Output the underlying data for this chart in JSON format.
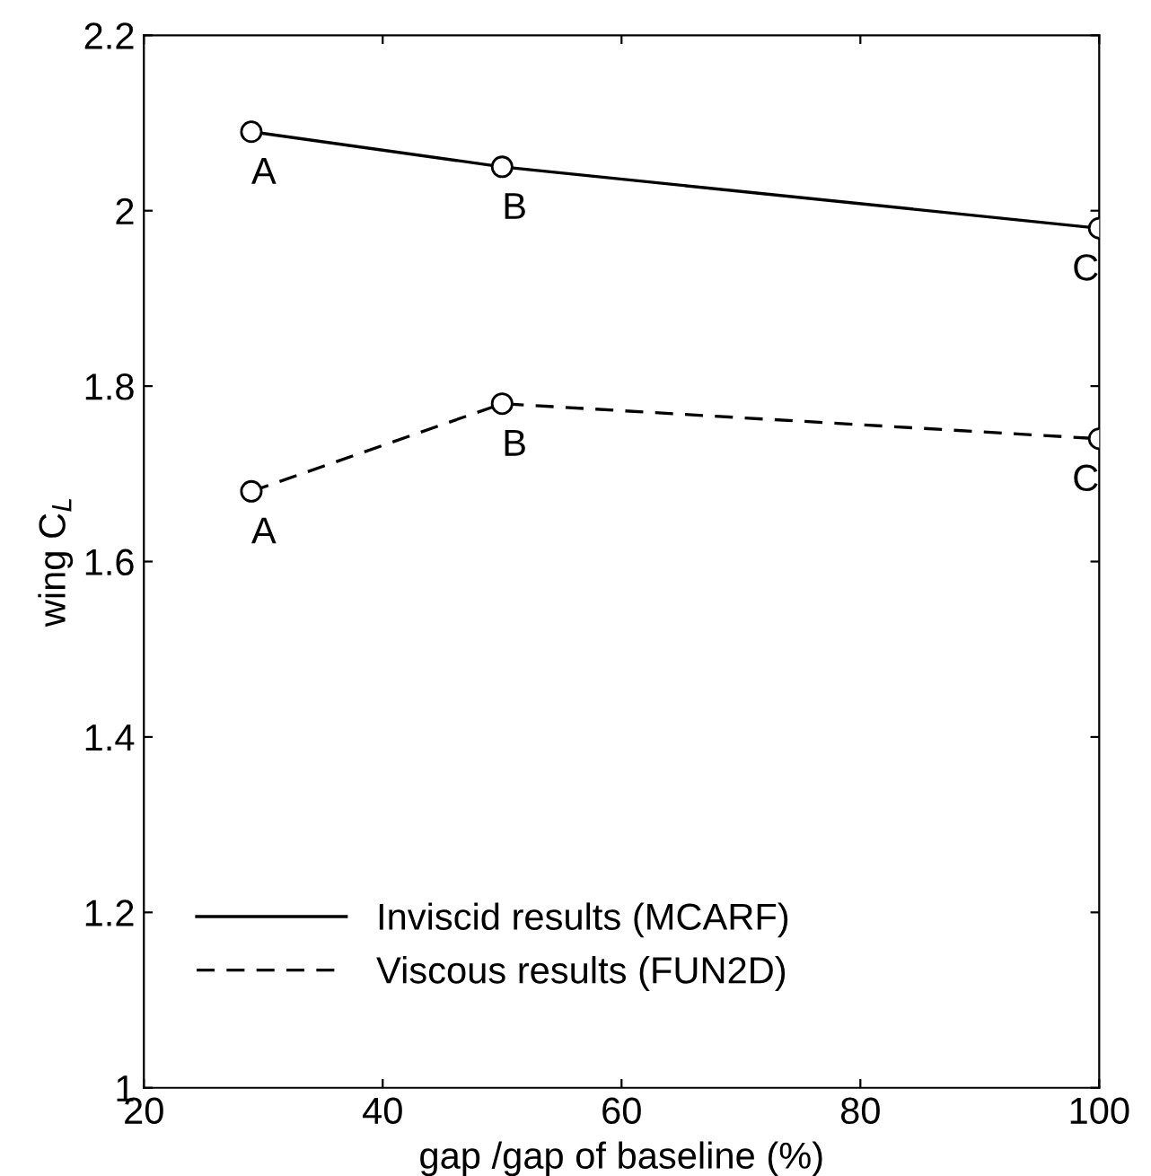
{
  "chart_data": {
    "type": "line",
    "xlabel": "gap /gap of baseline (%)",
    "ylabel": "wing C$_{L}$",
    "series": [
      {
        "name": "Inviscid results (MCARF)",
        "color": "#000000",
        "x": [
          29,
          50,
          100
        ],
        "values": [
          2.09,
          2.05,
          1.98
        ],
        "line_style": "solid"
      },
      {
        "name": "Viscous results (FUN2D)",
        "color": "#000000",
        "x": [
          29,
          50,
          100
        ],
        "values": [
          1.68,
          1.78,
          1.74
        ],
        "line_style": "dashed"
      }
    ],
    "marker": "circle",
    "legend": "bottom left",
    "grid": false,
    "xlim": [
      20,
      100
    ],
    "xticks": [
      20,
      40,
      60,
      80,
      100
    ],
    "ylim": [
      1,
      2.2
    ],
    "yticks": [
      1,
      1.2,
      1.4,
      1.6,
      1.8,
      2,
      2.2
    ],
    "annotations": [
      {
        "text": "A",
        "x": 29,
        "y": 2.09
      },
      {
        "text": "B",
        "x": 50,
        "y": 2.05
      },
      {
        "text": "C",
        "x": 100,
        "y": 1.98
      },
      {
        "text": "A",
        "x": 29,
        "y": 1.68
      },
      {
        "text": "B",
        "x": 50,
        "y": 1.78
      },
      {
        "text": "C",
        "x": 100,
        "y": 1.74
      }
    ]
  }
}
